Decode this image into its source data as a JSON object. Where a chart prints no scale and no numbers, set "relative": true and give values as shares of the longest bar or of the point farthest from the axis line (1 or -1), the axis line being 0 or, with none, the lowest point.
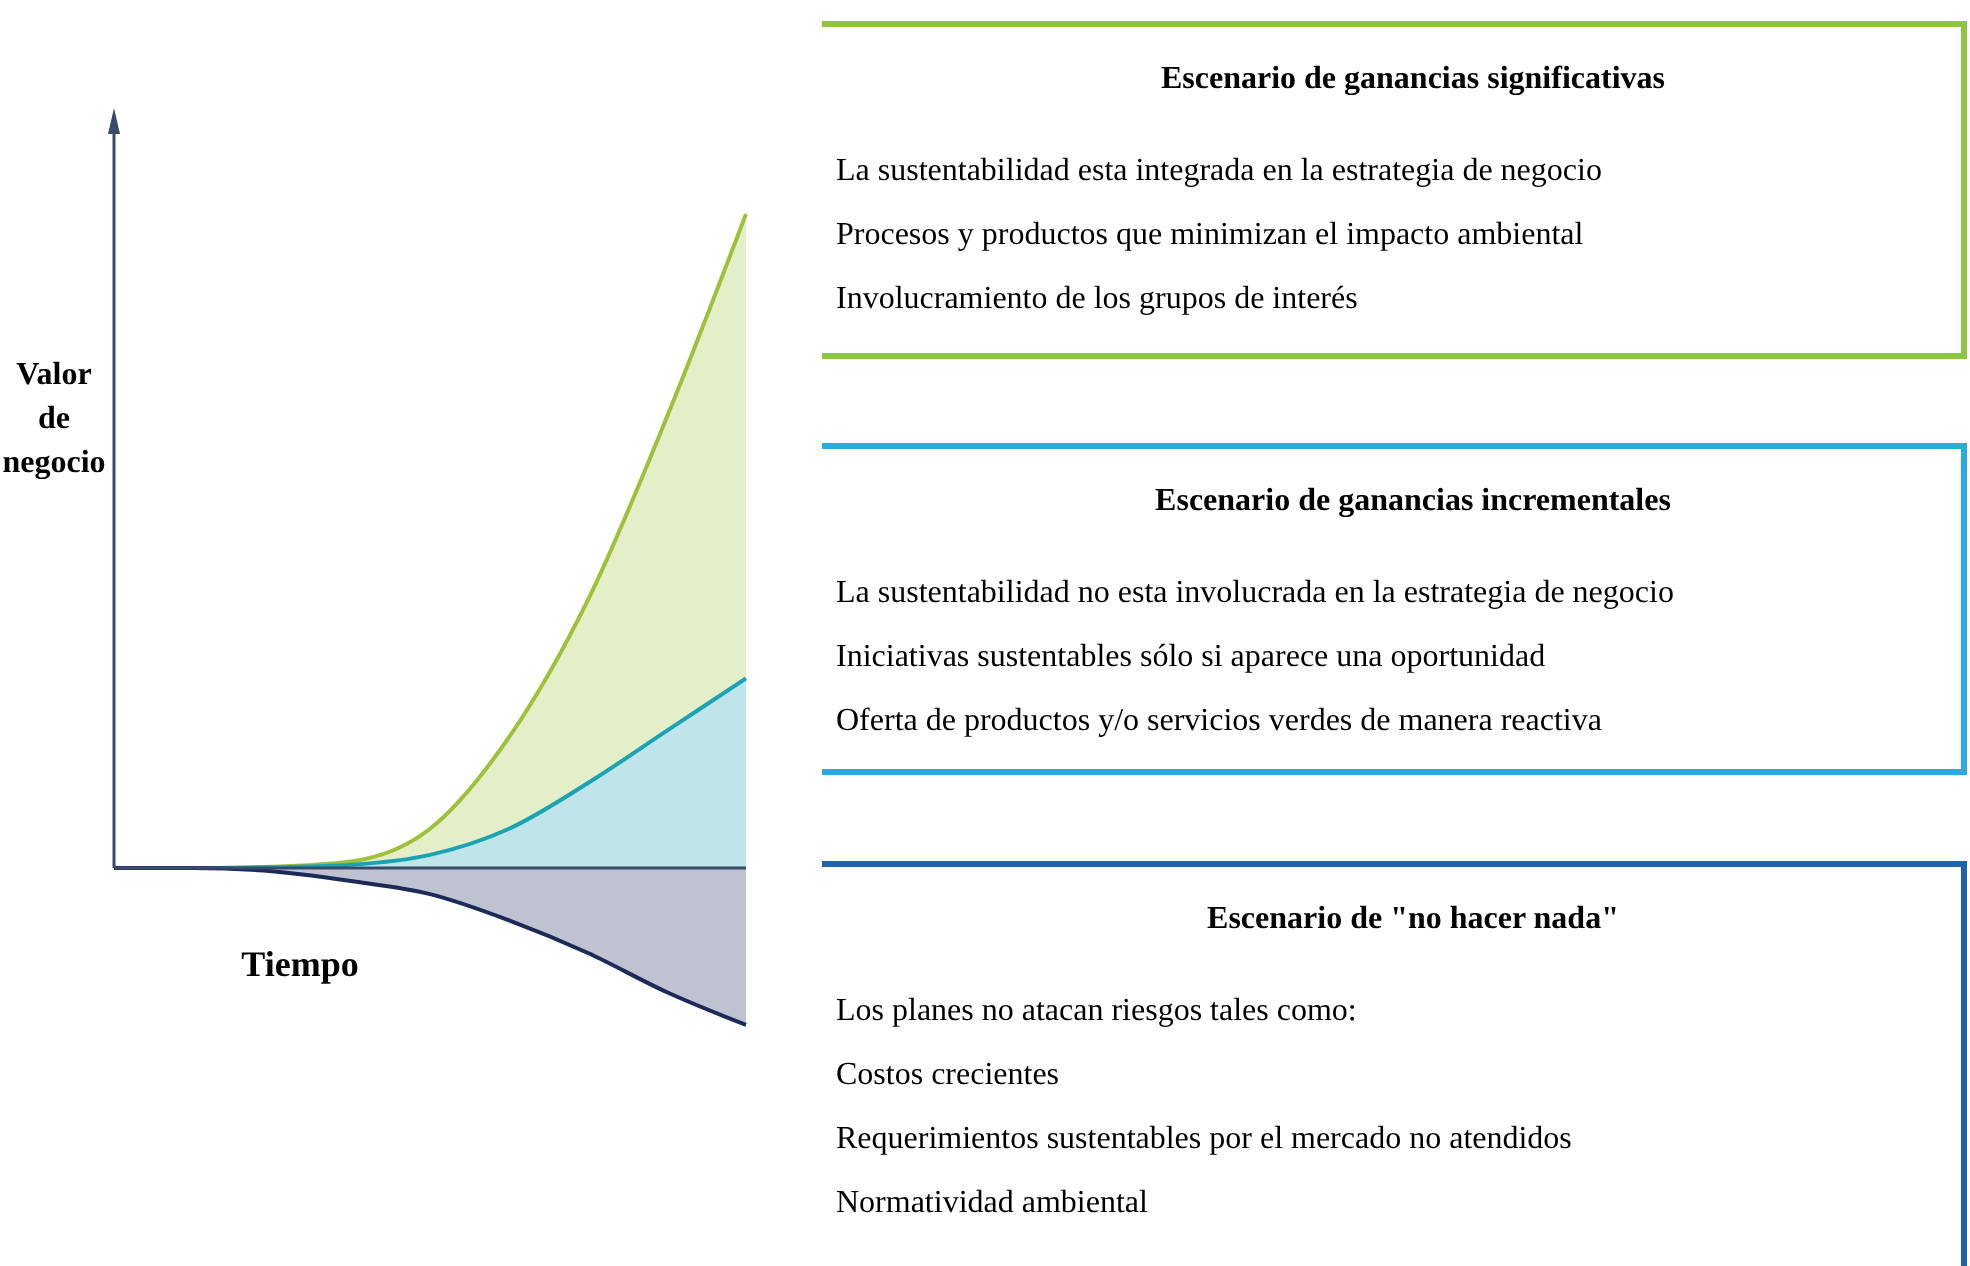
{
  "chart_data": [
    {
      "type": "area",
      "xlabel": "Tiempo",
      "ylabel": "Valor de negocio",
      "relative": true,
      "ref_lines": [
        {
          "axis": "y",
          "value": 0,
          "color": "#3a4a6a"
        }
      ],
      "categories": [
        null,
        null,
        null,
        null,
        null,
        null,
        null,
        null,
        null
      ],
      "series": [
        {
          "color": "#9dc23a",
          "values": [
            0,
            0,
            0.002,
            0.01,
            0.06,
            0.2,
            0.41,
            0.69,
            1
          ]
        },
        {
          "color": "#1aa3b3",
          "values": [
            0,
            0,
            0.001,
            0.005,
            0.02,
            0.06,
            0.13,
            0.21,
            0.29
          ]
        },
        {
          "color": "#1c2a5a",
          "values": [
            0,
            0,
            -0.005,
            -0.02,
            -0.04,
            -0.08,
            -0.13,
            -0.19,
            -0.24
          ]
        }
      ]
    },
    {
      "type": "other",
      "color": "#8cc63f",
      "title": "Escenario de ganancias significativas",
      "annotations": [
        "La sustentabilidad esta integrada en la estrategia de negocio",
        "Procesos y productos que minimizan el impacto ambiental",
        "Involucramiento de los grupos de interés"
      ]
    },
    {
      "type": "other",
      "color": "#29abe2",
      "title": "Escenario de ganancias incrementales",
      "annotations": [
        "La sustentabilidad no esta involucrada en la estrategia de negocio",
        "Iniciativas sustentables sólo si aparece una oportunidad",
        "Oferta de productos y/o servicios verdes de manera reactiva"
      ]
    },
    {
      "type": "other",
      "color": "#1f63a8",
      "title": "Escenario de \"no hacer nada\"",
      "annotations": [
        "Los planes no atacan riesgos tales como:",
        "Costos crecientes",
        "Requerimientos sustentables  por el mercado no atendidos",
        "Normatividad ambiental"
      ]
    }
  ]
}
